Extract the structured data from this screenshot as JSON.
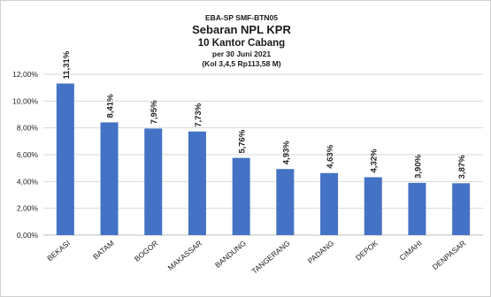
{
  "chart_data": {
    "type": "bar",
    "title_lines": [
      "EBA-SP SMF-BTN05",
      "Sebaran NPL KPR",
      "10 Kantor Cabang",
      "per 30 Juni 2021",
      "(Kol 3,4,5 Rp113,58 M)"
    ],
    "categories": [
      "BEKASI",
      "BATAM",
      "BOGOR",
      "MAKASSAR",
      "BANDUNG",
      "TANGERANG",
      "PADANG",
      "DEPOK",
      "CIMAHI",
      "DENPASAR"
    ],
    "values": [
      11.31,
      8.41,
      7.95,
      7.73,
      5.76,
      4.93,
      4.63,
      4.32,
      3.9,
      3.87
    ],
    "value_labels": [
      "11,31%",
      "8,41%",
      "7,95%",
      "7,73%",
      "5,76%",
      "4,93%",
      "4,63%",
      "4,32%",
      "3,90%",
      "3,87%"
    ],
    "y_ticks": [
      0,
      2,
      4,
      6,
      8,
      10,
      12
    ],
    "y_tick_labels": [
      "0,00%",
      "2,00%",
      "4,00%",
      "6,00%",
      "8,00%",
      "10,00%",
      "12,00%"
    ],
    "ylim": [
      0,
      12
    ],
    "grid": true,
    "legend": "none",
    "bar_color": "#4472c4"
  }
}
